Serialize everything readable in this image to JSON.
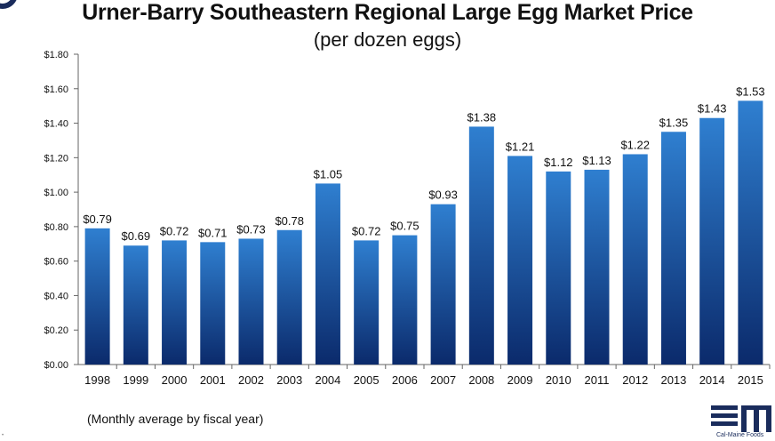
{
  "title": "Urner-Barry Southeastern Regional Large Egg Market Price",
  "subtitle": "(per dozen eggs)",
  "footnote": "(Monthly average by fiscal year)",
  "logo": {
    "caption": "Cal-Maine Foods",
    "color": "#1a2c5c"
  },
  "colors": {
    "bar_top": "#2f7fd0",
    "bar_bottom": "#0b2a6b",
    "axis": "#666666"
  },
  "chart_data": {
    "type": "bar",
    "title": "Urner-Barry Southeastern Regional Large Egg Market Price",
    "subtitle": "(per dozen eggs)",
    "xlabel": "",
    "ylabel": "",
    "ylim": [
      0,
      1.8
    ],
    "yticks": [
      "$0.00",
      "$0.20",
      "$0.40",
      "$0.60",
      "$0.80",
      "$1.00",
      "$1.20",
      "$1.40",
      "$1.60",
      "$1.80"
    ],
    "grid": false,
    "legend": "none",
    "categories": [
      "1998",
      "1999",
      "2000",
      "2001",
      "2002",
      "2003",
      "2004",
      "2005",
      "2006",
      "2007",
      "2008",
      "2009",
      "2010",
      "2011",
      "2012",
      "2013",
      "2014",
      "2015"
    ],
    "values": [
      0.79,
      0.69,
      0.72,
      0.71,
      0.73,
      0.78,
      1.05,
      0.72,
      0.75,
      0.93,
      1.38,
      1.21,
      1.12,
      1.13,
      1.22,
      1.35,
      1.43,
      1.53
    ],
    "value_labels": [
      "$0.79",
      "$0.69",
      "$0.72",
      "$0.71",
      "$0.73",
      "$0.78",
      "$1.05",
      "$0.72",
      "$0.75",
      "$0.93",
      "$1.38",
      "$1.21",
      "$1.12",
      "$1.13",
      "$1.22",
      "$1.35",
      "$1.43",
      "$1.53"
    ]
  }
}
